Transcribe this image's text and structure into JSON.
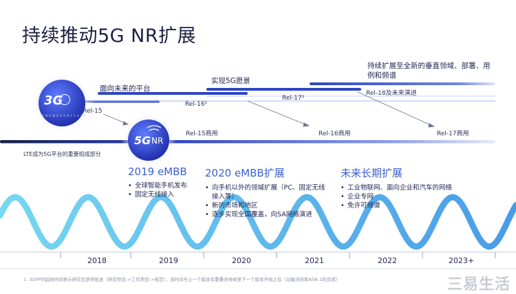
{
  "title": "持续推动5G NR扩展",
  "top_track": {
    "labels": {
      "platform": "面向未来的平台",
      "vision": "实现5G愿景",
      "expand": "持续扩展至全新的垂直领域、部署、用例和频谱"
    },
    "releases": [
      "Rel-15",
      "Rel-16¹",
      "Rel-17¹",
      "Rel-18及未来演进"
    ]
  },
  "bottom_track": {
    "labels": [
      "Rel-15商用",
      "Rel-16商用",
      "Rel-17商用"
    ],
    "lte_note": "LTE成为5G平台的重要组成部分"
  },
  "logos": {
    "g3_text": "3G",
    "g3_sub": "A N E W E R A O F 3 G P P",
    "nr_text": "5G",
    "nr_suffix": "NR"
  },
  "phases": [
    {
      "heading": "2019 eMBB",
      "bullets": [
        "全球智能手机发布",
        "固定无线接入"
      ]
    },
    {
      "heading": "2020 eMBB扩展",
      "bullets": [
        "向手机以外的领域扩展（PC、固定无线接入等）",
        "新的市场和地区",
        "逐步实现全国覆盖，向SA网络演进"
      ]
    },
    {
      "heading": "未来长期扩展",
      "bullets": [
        "工业物联网、面向企业和汽车的网络",
        "企业专网",
        "免许可频谱"
      ]
    }
  ],
  "years": [
    "2018",
    "2019",
    "2020",
    "2021",
    "2022",
    "2023+"
  ],
  "footnote": "1. 3GPP的起始时间表示研究包获得批准（研究项目->工作项目->规范），该时间与上一个版本有重叠并持续至下一个版本开始之后（功能冻结和ASN.1的完成）",
  "watermark": "三易生活",
  "colors": {
    "accent": "#3a5fd0",
    "track": "#2b3fb8",
    "wave": "#55c8ee"
  }
}
